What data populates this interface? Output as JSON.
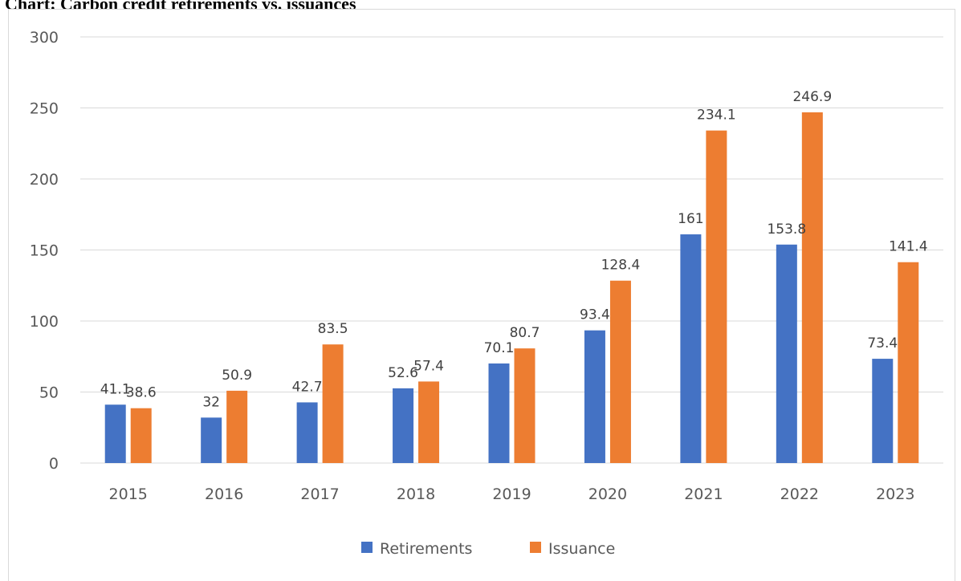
{
  "chart_data": {
    "type": "bar",
    "title": "Chart: Carbon credit retirements vs. issuances",
    "categories": [
      "2015",
      "2016",
      "2017",
      "2018",
      "2019",
      "2020",
      "2021",
      "2022",
      "2023"
    ],
    "series": [
      {
        "name": "Retirements",
        "color": "#4472c4",
        "values": [
          41.1,
          32,
          42.7,
          52.6,
          70.1,
          93.4,
          161,
          153.8,
          73.4
        ]
      },
      {
        "name": "Issuance",
        "color": "#ed7d31",
        "values": [
          38.6,
          50.9,
          83.5,
          57.4,
          80.7,
          128.4,
          234.1,
          246.9,
          141.4
        ]
      }
    ],
    "ylim": [
      0,
      300
    ],
    "yticks": [
      "0",
      "50",
      "100",
      "150",
      "200",
      "250",
      "300"
    ],
    "grid": true,
    "gridColor": "#d9d9d9",
    "legend_position": "bottom"
  }
}
